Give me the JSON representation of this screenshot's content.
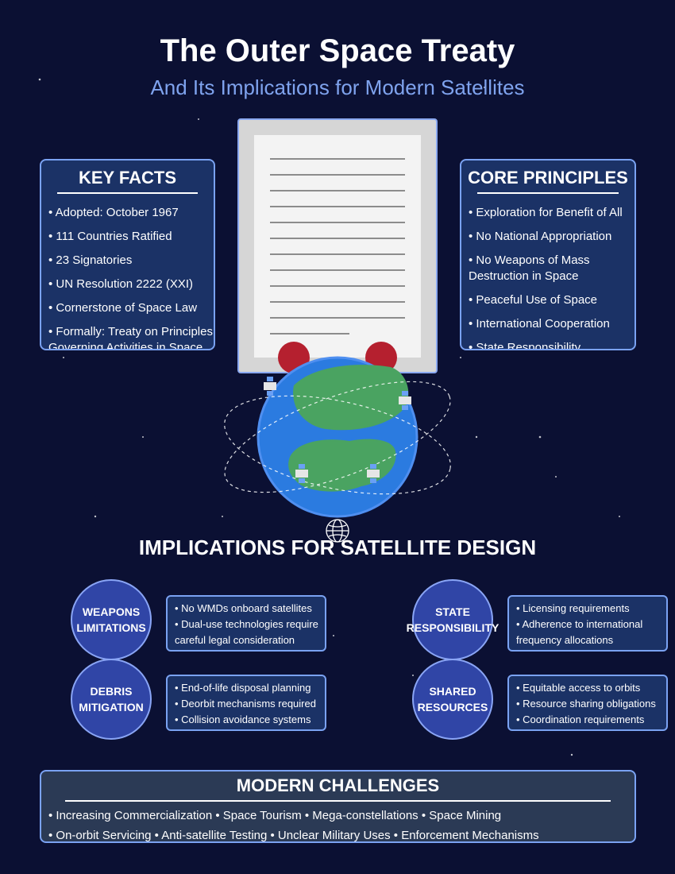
{
  "header": {
    "title": "The Outer Space Treaty",
    "subtitle": "And Its Implications for Modern Satellites"
  },
  "key_facts": {
    "heading": "KEY FACTS",
    "items": [
      "• Adopted: October 1967",
      "• 111 Countries Ratified",
      "• 23 Signatories",
      "• UN Resolution 2222 (XXI)",
      "• Cornerstone of Space Law",
      "• Formally: Treaty on Principles Governing Activities in Space"
    ]
  },
  "core_principles": {
    "heading": "CORE PRINCIPLES",
    "items": [
      "• Exploration for Benefit of All",
      "• No National Appropriation",
      "• No Weapons of Mass Destruction in Space",
      "• Peaceful Use of Space",
      "• International Cooperation",
      "• State Responsibility"
    ]
  },
  "implications": {
    "heading": "IMPLICATIONS FOR SATELLITE DESIGN",
    "weapons": {
      "label": "WEAPONS LIMITATIONS",
      "items": [
        "• No WMDs onboard satellites",
        "• Dual-use technologies require careful legal consideration"
      ]
    },
    "debris": {
      "label": "DEBRIS MITIGATION",
      "items": [
        "• End-of-life disposal planning",
        "• Deorbit mechanisms required",
        "• Collision avoidance systems"
      ]
    },
    "state": {
      "label": "STATE RESPONSIBILITY",
      "items": [
        "• Licensing requirements",
        "• Adherence to international frequency allocations"
      ]
    },
    "shared": {
      "label": "SHARED RESOURCES",
      "items": [
        "• Equitable access to orbits",
        "• Resource sharing obligations",
        "• Coordination requirements"
      ]
    }
  },
  "challenges": {
    "heading": "MODERN CHALLENGES",
    "line1": "• Increasing Commercialization • Space Tourism • Mega-constellations • Space Mining",
    "line2": "• On-orbit Servicing • Anti-satellite Testing • Unclear Military Uses • Enforcement Mechanisms"
  },
  "colors": {
    "background": "#0b1033",
    "panel": "#1b3266",
    "panel_border": "#7aa2f2",
    "subtitle": "#7fa3ee",
    "circle": "#3045a6",
    "earth_ocean": "#2b7be0",
    "earth_land": "#4aa361",
    "seal": "#b5202f",
    "challenges_panel": "#2b3a55"
  },
  "icons": [
    "treaty-document-icon",
    "earth-globe-icon",
    "satellite-icon",
    "globe-symbol-icon"
  ]
}
